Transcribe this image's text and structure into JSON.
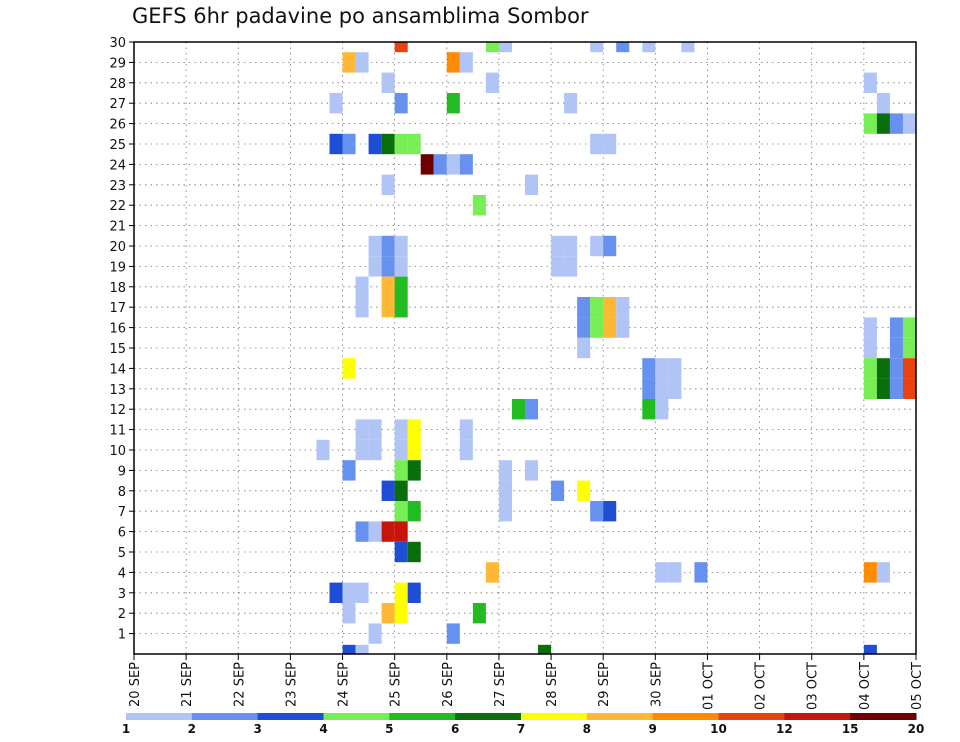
{
  "chart_data": {
    "type": "heatmap",
    "title": "GEFS 6hr padavine po ansamblima Sombor",
    "xlabel": "",
    "ylabel": "",
    "x_ticks": [
      "20 SEP",
      "21 SEP",
      "22 SEP",
      "23 SEP",
      "24 SEP",
      "25 SEP",
      "26 SEP",
      "27 SEP",
      "28 SEP",
      "29 SEP",
      "30 SEP",
      "01 OCT",
      "02 OCT",
      "03 OCT",
      "04 OCT",
      "05 OCT"
    ],
    "y_ticks": [
      "1",
      "2",
      "3",
      "4",
      "5",
      "6",
      "7",
      "8",
      "9",
      "10",
      "11",
      "12",
      "13",
      "14",
      "15",
      "16",
      "17",
      "18",
      "19",
      "20",
      "21",
      "22",
      "23",
      "24",
      "25",
      "26",
      "27",
      "28",
      "29",
      "30"
    ],
    "x_unit": "6-hour step from 20 SEP 00",
    "grid": true,
    "legend": {
      "position": "bottom",
      "labels": [
        "1",
        "2",
        "3",
        "4",
        "5",
        "6",
        "7",
        "8",
        "9",
        "10",
        "12",
        "15",
        "20"
      ],
      "colors": [
        "#b0c4f5",
        "#6691ee",
        "#1e4ed6",
        "#77ee55",
        "#22bb22",
        "#0a6e0a",
        "#ffff00",
        "#ffb836",
        "#ff8c00",
        "#e8420e",
        "#c9140a",
        "#6e0000"
      ]
    },
    "cells": [
      [
        20,
        30,
        3
      ],
      [
        26,
        0,
        2
      ],
      [
        28,
        0,
        1
      ],
      [
        54,
        0,
        4
      ],
      [
        64,
        0,
        2
      ],
      [
        20,
        1,
        1
      ],
      [
        17,
        2,
        1
      ],
      [
        27,
        2,
        1
      ],
      [
        29,
        2,
        2
      ],
      [
        12,
        3,
        1
      ],
      [
        14,
        3,
        7
      ],
      [
        22,
        3,
        1
      ],
      [
        12,
        4,
        6
      ],
      [
        14,
        4,
        8
      ],
      [
        20,
        4,
        2
      ],
      [
        32,
        4,
        5
      ],
      [
        13,
        4,
        5
      ],
      [
        16,
        5,
        3
      ],
      [
        17,
        5,
        2
      ],
      [
        22,
        5,
        1
      ],
      [
        36,
        5,
        1
      ],
      [
        38,
        5,
        1
      ],
      [
        47,
        5,
        2
      ],
      [
        51,
        5,
        1
      ],
      [
        62,
        5,
        2
      ],
      [
        26,
        6,
        1
      ],
      [
        30,
        6,
        3
      ],
      [
        34,
        6,
        1
      ],
      [
        53,
        6,
        1
      ],
      [
        9,
        7,
        3
      ],
      [
        12,
        7,
        1
      ],
      [
        13,
        7,
        1
      ],
      [
        18,
        7,
        4
      ],
      [
        19,
        7,
        4
      ],
      [
        20,
        7,
        4
      ],
      [
        30,
        7,
        4
      ],
      [
        31,
        7,
        1
      ],
      [
        32,
        7,
        4
      ],
      [
        39,
        7,
        1
      ],
      [
        40,
        7,
        5
      ],
      [
        41,
        7,
        4
      ],
      [
        56,
        7,
        1
      ],
      [
        60,
        7,
        1
      ],
      [
        61,
        7,
        1
      ],
      [
        0,
        7,
        1
      ],
      [
        2,
        7,
        1
      ],
      [
        5,
        7,
        1
      ],
      [
        9,
        8,
        1
      ],
      [
        11,
        8,
        1
      ],
      [
        23,
        8,
        2
      ],
      [
        29,
        8,
        1
      ],
      [
        7,
        8,
        1
      ],
      [
        18,
        8,
        1
      ],
      [
        26,
        8,
        5
      ],
      [
        28,
        8,
        3
      ],
      [
        18,
        9,
        1
      ],
      [
        29,
        9,
        1
      ],
      [
        47,
        9,
        4
      ],
      [
        13,
        10,
        4
      ],
      [
        18,
        10,
        8
      ],
      [
        17,
        10,
        4
      ],
      [
        11,
        11,
        8
      ],
      [
        22,
        11,
        3
      ],
      [
        12,
        12,
        1
      ],
      [
        14,
        12,
        1
      ],
      [
        15,
        12,
        7
      ],
      [
        16,
        12,
        8
      ],
      [
        13,
        13,
        6
      ],
      [
        14,
        13,
        4
      ],
      [
        15,
        13,
        4
      ],
      [
        16,
        13,
        4
      ],
      [
        30,
        13,
        1
      ],
      [
        17,
        14,
        7
      ],
      [
        18,
        14,
        7
      ],
      [
        19,
        14,
        7
      ],
      [
        20,
        14,
        1
      ],
      [
        21,
        14,
        2
      ],
      [
        22,
        14,
        1
      ],
      [
        23,
        14,
        2
      ],
      [
        21,
        15,
        1
      ],
      [
        26,
        15,
        3
      ],
      [
        6,
        15,
        2
      ],
      [
        7,
        15,
        2
      ],
      [
        8,
        15,
        2
      ],
      [
        9,
        15,
        1
      ],
      [
        38,
        15,
        1
      ],
      [
        39,
        15,
        1
      ],
      [
        11,
        16,
        1
      ],
      [
        19,
        16,
        1
      ],
      [
        12,
        16,
        3
      ],
      [
        13,
        16,
        1
      ],
      [
        14,
        16,
        2
      ],
      [
        15,
        16,
        3
      ],
      [
        16,
        16,
        3
      ],
      [
        17,
        16,
        3
      ],
      [
        18,
        16,
        4
      ],
      [
        19,
        16,
        3
      ],
      [
        20,
        16,
        3
      ],
      [
        21,
        16,
        3
      ],
      [
        22,
        16,
        1
      ],
      [
        23,
        16,
        1
      ],
      [
        24,
        16,
        1
      ],
      [
        25,
        16,
        4
      ],
      [
        26,
        16,
        6
      ],
      [
        28,
        16,
        5
      ],
      [
        29,
        16,
        4
      ],
      [
        30,
        16,
        4
      ],
      [
        31,
        16,
        6
      ],
      [
        32,
        16,
        5
      ],
      [
        33,
        16,
        3
      ],
      [
        34,
        16,
        3
      ],
      [
        35,
        16,
        5
      ],
      [
        36,
        16,
        3
      ],
      [
        37,
        16,
        3
      ],
      [
        38,
        16,
        5
      ],
      [
        39,
        16,
        4
      ],
      [
        40,
        16,
        3
      ],
      [
        41,
        16,
        6
      ],
      [
        42,
        16,
        4
      ],
      [
        43,
        16,
        2
      ],
      [
        44,
        16,
        3
      ],
      [
        45,
        16,
        3
      ],
      [
        46,
        16,
        2
      ],
      [
        47,
        16,
        3
      ],
      [
        48,
        16,
        6
      ],
      [
        49,
        16,
        4
      ],
      [
        50,
        16,
        4
      ],
      [
        51,
        16,
        4
      ]
    ],
    "cell_mark": "value index into legend colors",
    "cells_note_x": "x step index",
    "cells_note_y": "member 1-30",
    "cells_flat": [
      [
        20,
        30,
        9
      ],
      [
        16,
        29,
        7
      ],
      [
        17,
        29,
        0
      ],
      [
        24,
        29,
        8
      ],
      [
        25,
        29,
        0
      ],
      [
        27,
        30,
        3
      ],
      [
        28,
        30,
        0
      ],
      [
        35,
        30,
        0
      ],
      [
        37,
        30,
        1
      ],
      [
        39,
        30,
        0
      ],
      [
        42,
        30,
        0
      ],
      [
        19,
        28,
        0
      ],
      [
        27,
        28,
        0
      ],
      [
        56,
        28,
        0
      ],
      [
        15,
        27,
        0
      ],
      [
        20,
        27,
        1
      ],
      [
        24,
        27,
        4
      ],
      [
        33,
        27,
        0
      ],
      [
        57,
        27,
        0
      ],
      [
        56,
        26,
        3
      ],
      [
        57,
        26,
        5
      ],
      [
        58,
        26,
        1
      ],
      [
        59,
        26,
        0
      ],
      [
        60,
        26,
        5
      ],
      [
        61,
        26,
        4
      ],
      [
        15,
        25,
        2
      ],
      [
        16,
        25,
        1
      ],
      [
        18,
        25,
        2
      ],
      [
        19,
        25,
        5
      ],
      [
        20,
        25,
        3
      ],
      [
        21,
        25,
        3
      ],
      [
        35,
        25,
        0
      ],
      [
        36,
        25,
        0
      ],
      [
        22,
        24,
        11
      ],
      [
        23,
        24,
        1
      ],
      [
        24,
        24,
        0
      ],
      [
        25,
        24,
        1
      ],
      [
        19,
        23,
        0
      ],
      [
        30,
        23,
        0
      ],
      [
        26,
        22,
        3
      ],
      [
        35,
        20,
        0
      ],
      [
        36,
        20,
        1
      ],
      [
        18,
        20,
        0
      ],
      [
        19,
        20,
        1
      ],
      [
        20,
        20,
        0
      ],
      [
        32,
        20,
        0
      ],
      [
        33,
        20,
        0
      ],
      [
        18,
        19,
        0
      ],
      [
        19,
        19,
        1
      ],
      [
        20,
        19,
        0
      ],
      [
        32,
        19,
        0
      ],
      [
        33,
        19,
        0
      ],
      [
        17,
        18,
        0
      ],
      [
        19,
        18,
        7
      ],
      [
        20,
        18,
        4
      ],
      [
        17,
        17,
        0
      ],
      [
        19,
        17,
        7
      ],
      [
        20,
        17,
        4
      ],
      [
        34,
        17,
        1
      ],
      [
        35,
        17,
        3
      ],
      [
        36,
        17,
        7
      ],
      [
        37,
        17,
        0
      ],
      [
        34,
        16,
        1
      ],
      [
        35,
        16,
        3
      ],
      [
        36,
        16,
        7
      ],
      [
        37,
        16,
        0
      ],
      [
        56,
        16,
        0
      ],
      [
        58,
        16,
        1
      ],
      [
        59,
        16,
        3
      ],
      [
        34,
        15,
        0
      ],
      [
        56,
        15,
        0
      ],
      [
        58,
        15,
        1
      ],
      [
        59,
        15,
        3
      ],
      [
        16,
        14,
        6
      ],
      [
        39,
        14,
        1
      ],
      [
        40,
        14,
        0
      ],
      [
        41,
        14,
        0
      ],
      [
        56,
        14,
        3
      ],
      [
        57,
        14,
        5
      ],
      [
        58,
        14,
        1
      ],
      [
        59,
        14,
        9
      ],
      [
        60,
        14,
        9
      ],
      [
        61,
        14,
        0
      ],
      [
        39,
        13,
        1
      ],
      [
        40,
        13,
        0
      ],
      [
        41,
        13,
        0
      ],
      [
        56,
        13,
        3
      ],
      [
        57,
        13,
        5
      ],
      [
        58,
        13,
        1
      ],
      [
        59,
        13,
        9
      ],
      [
        60,
        13,
        9
      ],
      [
        61,
        13,
        0
      ],
      [
        29,
        12,
        4
      ],
      [
        30,
        12,
        1
      ],
      [
        39,
        12,
        4
      ],
      [
        40,
        12,
        0
      ],
      [
        14,
        10,
        0
      ],
      [
        17,
        10,
        0
      ],
      [
        18,
        10,
        0
      ],
      [
        20,
        10,
        0
      ],
      [
        21,
        10,
        6
      ],
      [
        25,
        10,
        0
      ],
      [
        17,
        11,
        0
      ],
      [
        18,
        11,
        0
      ],
      [
        20,
        11,
        0
      ],
      [
        21,
        11,
        6
      ],
      [
        25,
        11,
        0
      ],
      [
        16,
        9,
        1
      ],
      [
        20,
        9,
        3
      ],
      [
        21,
        9,
        5
      ],
      [
        28,
        9,
        0
      ],
      [
        30,
        9,
        0
      ],
      [
        19,
        8,
        2
      ],
      [
        20,
        8,
        5
      ],
      [
        28,
        8,
        0
      ],
      [
        32,
        8,
        1
      ],
      [
        34,
        8,
        6
      ],
      [
        28,
        7,
        0
      ],
      [
        20,
        7,
        3
      ],
      [
        21,
        7,
        4
      ],
      [
        35,
        7,
        1
      ],
      [
        36,
        7,
        2
      ],
      [
        17,
        6,
        1
      ],
      [
        18,
        6,
        0
      ],
      [
        19,
        6,
        10
      ],
      [
        20,
        6,
        10
      ],
      [
        60,
        6,
        0
      ],
      [
        61,
        6,
        8
      ],
      [
        20,
        5,
        2
      ],
      [
        21,
        5,
        5
      ],
      [
        27,
        4,
        7
      ],
      [
        40,
        4,
        0
      ],
      [
        41,
        4,
        0
      ],
      [
        43,
        4,
        1
      ],
      [
        56,
        4,
        8
      ],
      [
        57,
        4,
        0
      ],
      [
        15,
        3,
        2
      ],
      [
        16,
        3,
        0
      ],
      [
        17,
        3,
        0
      ],
      [
        20,
        3,
        6
      ],
      [
        21,
        3,
        2
      ],
      [
        16,
        2,
        0
      ],
      [
        19,
        2,
        7
      ],
      [
        20,
        2,
        6
      ],
      [
        26,
        2,
        4
      ],
      [
        18,
        1,
        0
      ],
      [
        24,
        1,
        1
      ],
      [
        60,
        1,
        7
      ],
      [
        61,
        1,
        7
      ],
      [
        16,
        0,
        2
      ],
      [
        17,
        0,
        0
      ],
      [
        31,
        0,
        5
      ],
      [
        56,
        0,
        2
      ],
      [
        62,
        0,
        2
      ]
    ]
  }
}
